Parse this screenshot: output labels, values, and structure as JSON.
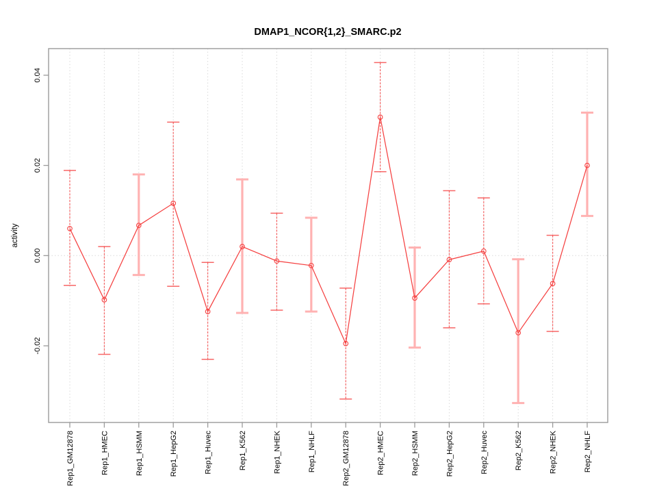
{
  "chart_data": {
    "type": "line",
    "title": "DMAP1_NCOR{1,2}_SMARC.p2",
    "ylabel": "activity",
    "xlabel": "",
    "categories": [
      "Rep1_GM12878",
      "Rep1_HMEC",
      "Rep1_HSMM",
      "Rep1_HepG2",
      "Rep1_Huvec",
      "Rep1_K562",
      "Rep1_NHEK",
      "Rep1_NHLF",
      "Rep2_GM12878",
      "Rep2_HMEC",
      "Rep2_HSMM",
      "Rep2_HepG2",
      "Rep2_Huvec",
      "Rep2_K562",
      "Rep2_NHEK",
      "Rep2_NHLF"
    ],
    "series": [
      {
        "name": "activity",
        "marker": "open-circle",
        "values": [
          0.006,
          -0.0098,
          0.0067,
          0.0116,
          -0.0124,
          0.002,
          -0.0012,
          -0.0022,
          -0.0195,
          0.0307,
          -0.0094,
          -0.0009,
          0.001,
          -0.0171,
          -0.0062,
          0.02
        ],
        "error_low": [
          -0.0066,
          -0.0219,
          -0.0043,
          -0.0068,
          -0.023,
          -0.0127,
          -0.0121,
          -0.0124,
          -0.0318,
          0.0186,
          -0.0204,
          -0.016,
          -0.0107,
          -0.0327,
          -0.0168,
          0.0088
        ],
        "error_high": [
          0.0189,
          0.002,
          0.018,
          0.0296,
          -0.0015,
          0.0169,
          0.0094,
          0.0084,
          -0.0072,
          0.0428,
          0.0018,
          0.0144,
          0.0128,
          -0.0008,
          0.0045,
          0.0317
        ],
        "error_bar_weight": [
          "thin",
          "thin",
          "thick",
          "thin",
          "thin",
          "thick",
          "thin",
          "thick",
          "thin",
          "thin",
          "thick",
          "thin",
          "thin",
          "thick",
          "thin",
          "thick"
        ]
      }
    ],
    "yticks": {
      "values": [
        -0.02,
        0.0,
        0.02,
        0.04
      ],
      "labels": [
        "-0.02",
        "0.00",
        "0.02",
        "0.04"
      ]
    },
    "ylim": [
      -0.037,
      0.0459
    ],
    "grid": {
      "vertical_per_category": true,
      "horizontal_zero_line": true,
      "style": "dotted"
    },
    "legend": "none",
    "colors": {
      "series": "#f54040",
      "error_thick": "#ffb2b2",
      "grid": "#d9d9d9",
      "frame": "#9a9a9a",
      "text": "#000000",
      "background": "#ffffff"
    }
  }
}
